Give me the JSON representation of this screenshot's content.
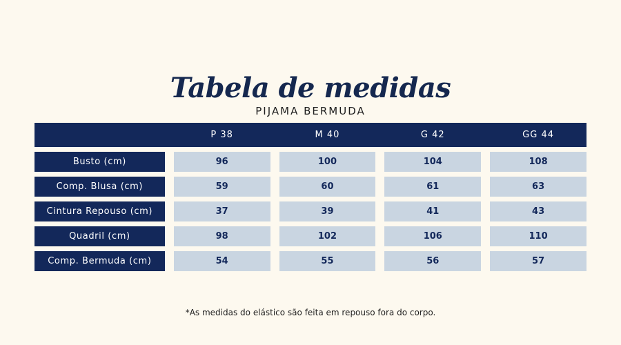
{
  "title": "Tabela de medidas",
  "subtitle": "PIJAMA BERMUDA",
  "table": {
    "columns": [
      "P 38",
      "M 40",
      "G 42",
      "GG 44"
    ],
    "rows": [
      {
        "label": "Busto (cm)",
        "values": [
          "96",
          "100",
          "104",
          "108"
        ]
      },
      {
        "label": "Comp. Blusa (cm)",
        "values": [
          "59",
          "60",
          "61",
          "63"
        ]
      },
      {
        "label": "Cintura Repouso (cm)",
        "values": [
          "37",
          "39",
          "41",
          "43"
        ]
      },
      {
        "label": "Quadril (cm)",
        "values": [
          "98",
          "102",
          "106",
          "110"
        ]
      },
      {
        "label": "Comp. Bermuda (cm)",
        "values": [
          "54",
          "55",
          "56",
          "57"
        ]
      }
    ]
  },
  "footnote": "*As medidas do elástico são feita em repouso fora do corpo.",
  "colors": {
    "navy": "#13285a",
    "cell": "#c9d5e1",
    "background": "#fdf9ef"
  }
}
